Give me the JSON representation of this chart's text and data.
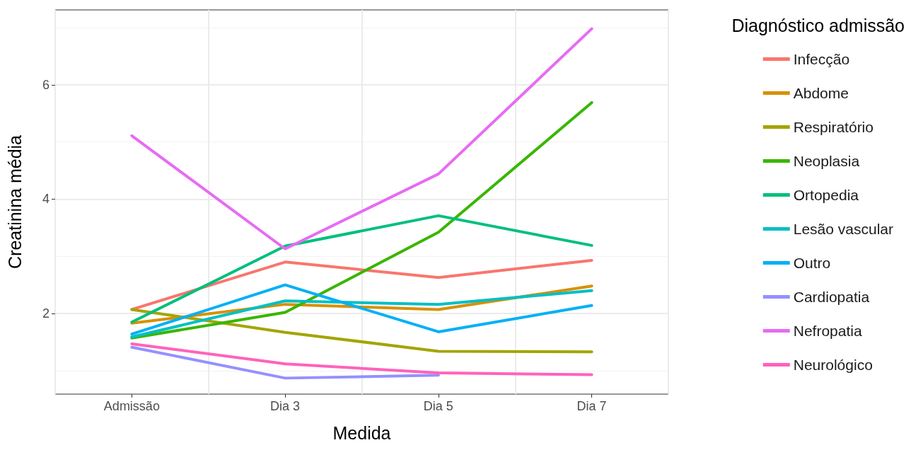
{
  "chart_data": {
    "type": "line",
    "xlabel": "Medida",
    "ylabel": "Creatinina média",
    "legend_title": "Diagnóstico admissão",
    "categories": [
      "Admissão",
      "Dia 3",
      "Dia 5",
      "Dia 7"
    ],
    "series": [
      {
        "name": "Infecção",
        "color": "#f8766d",
        "values": [
          2.07,
          2.9,
          2.63,
          2.93
        ]
      },
      {
        "name": "Abdome",
        "color": "#d89000",
        "values": [
          1.83,
          2.16,
          2.07,
          2.48
        ]
      },
      {
        "name": "Respiratório",
        "color": "#a3a500",
        "values": [
          2.07,
          1.67,
          1.34,
          1.33
        ]
      },
      {
        "name": "Neoplasia",
        "color": "#39b600",
        "values": [
          1.57,
          2.02,
          3.42,
          5.69
        ]
      },
      {
        "name": "Ortopedia",
        "color": "#00bf7d",
        "values": [
          1.85,
          3.18,
          3.71,
          3.19
        ]
      },
      {
        "name": "Lesão vascular",
        "color": "#00bfc4",
        "values": [
          1.59,
          2.22,
          2.16,
          2.4
        ]
      },
      {
        "name": "Outro",
        "color": "#00b0f6",
        "values": [
          1.64,
          2.5,
          1.68,
          2.14
        ]
      },
      {
        "name": "Cardiopatia",
        "color": "#9590ff",
        "values": [
          1.41,
          0.87,
          0.92,
          null
        ]
      },
      {
        "name": "Nefropatia",
        "color": "#e76bf3",
        "values": [
          5.11,
          3.13,
          4.44,
          6.98
        ]
      },
      {
        "name": "Neurológico",
        "color": "#ff62bc",
        "values": [
          1.47,
          1.12,
          0.96,
          0.93
        ]
      }
    ],
    "ylim": [
      0.59,
      7.31
    ],
    "yticks": [
      2,
      4,
      6
    ],
    "grid": true,
    "legend": "right",
    "marker": "none",
    "line_style": "solid"
  }
}
